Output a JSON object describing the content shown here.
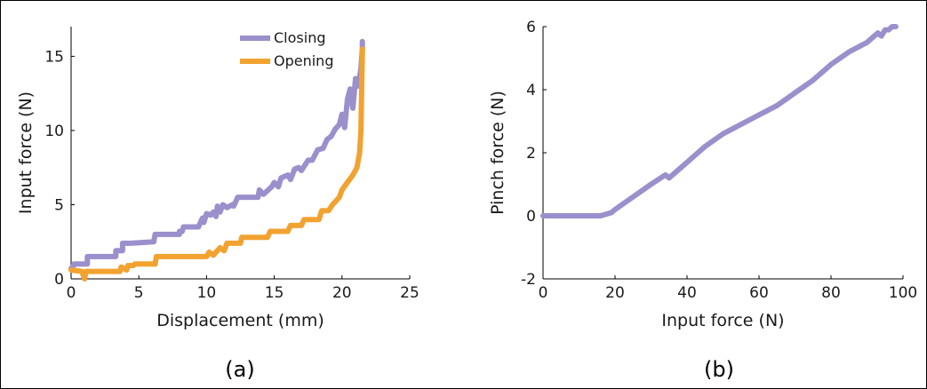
{
  "colors": {
    "closing": "#9b8fcc",
    "opening": "#f2a230",
    "pinch": "#9b8fcc"
  },
  "chart_data": [
    {
      "type": "line",
      "panel_label": "(a)",
      "title": "",
      "xlabel": "Displacement (mm)",
      "ylabel": "Input force (N)",
      "xlim": [
        0,
        25
      ],
      "ylim": [
        0,
        17
      ],
      "xticks": [
        0,
        5,
        10,
        15,
        20,
        25
      ],
      "yticks": [
        0,
        5,
        10,
        15
      ],
      "grid": false,
      "legend_position": "top-center",
      "series": [
        {
          "name": "Closing",
          "color_key": "closing",
          "x": [
            0,
            0.2,
            0.2,
            1.2,
            1.2,
            3.3,
            3.3,
            3.8,
            3.8,
            4.3,
            4.4,
            6.1,
            6.2,
            8.0,
            8.0,
            8.2,
            8.3,
            9.4,
            9.7,
            9.8,
            10.0,
            10.3,
            10.5,
            10.7,
            10.8,
            11.0,
            11.2,
            11.5,
            11.9,
            12.0,
            12.3,
            13.8,
            13.9,
            14.2,
            14.8,
            15.0,
            15.3,
            15.5,
            16.0,
            16.2,
            16.5,
            16.8,
            17.0,
            17.5,
            17.8,
            18.2,
            18.6,
            18.9,
            19.2,
            19.5,
            19.8,
            20.0,
            20.2,
            20.4,
            20.6,
            20.8,
            21.0,
            21.2,
            21.4,
            21.5,
            21.5
          ],
          "y": [
            0.7,
            0.9,
            1.0,
            1.0,
            1.5,
            1.5,
            1.9,
            1.9,
            2.4,
            2.4,
            2.4,
            2.5,
            3.0,
            3.0,
            3.2,
            3.2,
            3.5,
            3.5,
            4.1,
            3.8,
            4.4,
            4.3,
            4.5,
            4.2,
            4.9,
            4.5,
            5.0,
            4.8,
            5.0,
            4.9,
            5.5,
            5.5,
            6.0,
            5.7,
            6.2,
            6.5,
            6.2,
            6.8,
            7.0,
            6.7,
            7.4,
            7.5,
            7.3,
            8.0,
            8.0,
            8.7,
            8.8,
            9.4,
            9.6,
            10.1,
            10.4,
            11.1,
            10.2,
            12.1,
            12.8,
            11.5,
            13.5,
            13.0,
            14.2,
            15.5,
            16.0
          ]
        },
        {
          "name": "Opening",
          "color_key": "opening",
          "x": [
            0,
            0.8,
            1.0,
            1.1,
            1.2,
            3.6,
            3.7,
            4.1,
            4.2,
            4.6,
            4.7,
            6.2,
            6.3,
            10.0,
            10.2,
            10.5,
            11.0,
            11.3,
            11.5,
            12.5,
            12.6,
            14.5,
            14.7,
            16.0,
            16.2,
            17.0,
            17.2,
            18.3,
            18.5,
            19.0,
            19.3,
            19.8,
            20.0,
            20.4,
            20.8,
            21.1,
            21.3,
            21.4,
            21.5
          ],
          "y": [
            0.6,
            0.5,
            0.0,
            0.5,
            0.5,
            0.5,
            0.8,
            0.6,
            0.9,
            0.9,
            1.0,
            1.0,
            1.5,
            1.5,
            1.8,
            1.6,
            2.1,
            1.9,
            2.4,
            2.4,
            2.8,
            2.8,
            3.2,
            3.2,
            3.6,
            3.6,
            4.0,
            4.0,
            4.6,
            4.6,
            5.0,
            5.5,
            6.0,
            6.5,
            7.0,
            7.5,
            8.5,
            10.0,
            15.5
          ]
        }
      ]
    },
    {
      "type": "line",
      "panel_label": "(b)",
      "title": "",
      "xlabel": "Input force (N)",
      "ylabel": "Pinch force (N)",
      "xlim": [
        0,
        100
      ],
      "ylim": [
        -2,
        6
      ],
      "xticks": [
        0,
        20,
        40,
        60,
        80,
        100
      ],
      "yticks": [
        -2,
        0,
        2,
        4,
        6
      ],
      "grid": false,
      "series": [
        {
          "name": "",
          "color_key": "pinch",
          "x": [
            0,
            10,
            16,
            19,
            20,
            25,
            30,
            34,
            35,
            36,
            40,
            42,
            45,
            50,
            55,
            60,
            65,
            70,
            75,
            80,
            85,
            90,
            93,
            94,
            95,
            96,
            97,
            98
          ],
          "y": [
            0,
            0,
            0,
            0.1,
            0.2,
            0.6,
            1.0,
            1.3,
            1.2,
            1.3,
            1.7,
            1.9,
            2.2,
            2.6,
            2.9,
            3.2,
            3.5,
            3.9,
            4.3,
            4.8,
            5.2,
            5.5,
            5.8,
            5.7,
            5.9,
            5.9,
            6.0,
            6.0
          ]
        }
      ]
    }
  ]
}
